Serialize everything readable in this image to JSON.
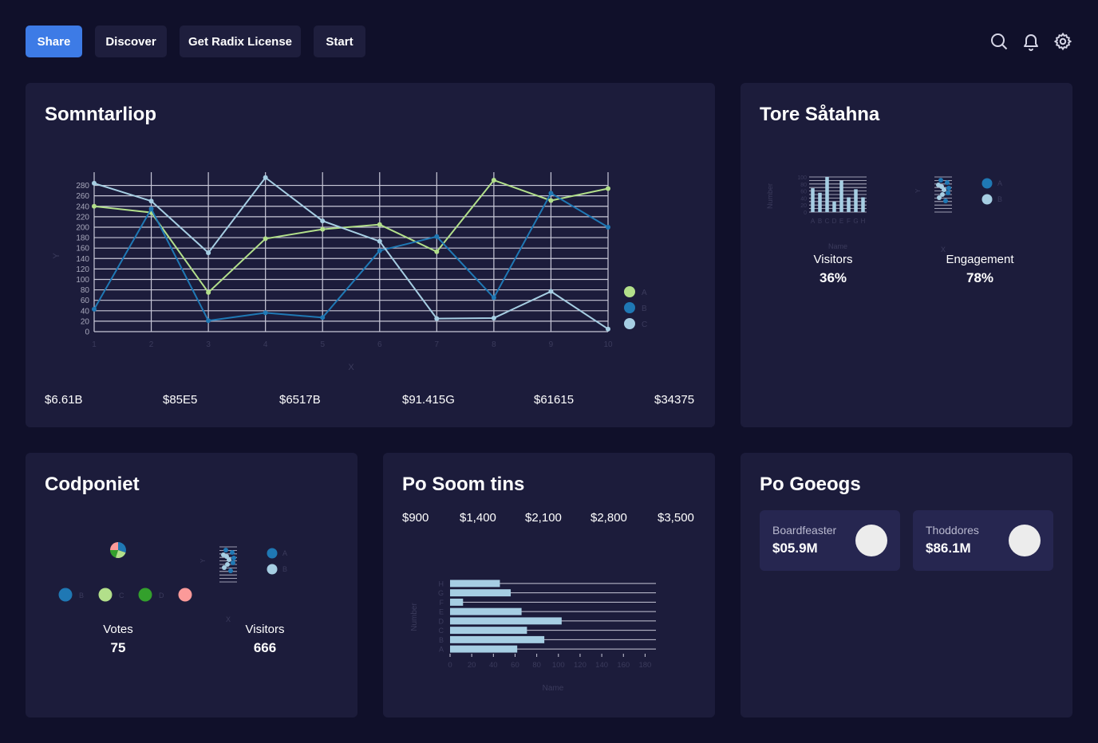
{
  "toolbar": {
    "share": "Share",
    "discover": "Discover",
    "license": "Get Radix License",
    "start": "Start"
  },
  "icons": [
    "search-icon",
    "bell-icon",
    "gear-icon"
  ],
  "colors": {
    "accent": "#3d7be6",
    "seriesA": "#b2df8a",
    "seriesB": "#1f78b4",
    "seriesC": "#a6cee3",
    "pink": "#fb9a99",
    "green": "#33a02c"
  },
  "main_card": {
    "title": "Somntarliop",
    "stats": [
      "$6.61B",
      "$85E5",
      "$6517B",
      "$91.415G",
      "$61615",
      "$34375"
    ]
  },
  "tore_card": {
    "title": "Tore Såtahna",
    "metric1_label": "Visitors",
    "metric1_value": "36%",
    "metric2_label": "Engagement",
    "metric2_value": "78%",
    "mini_bar_ylabel": "Number",
    "mini_bar_xlabel": "Name",
    "mini_scatter_ylabel": "Y",
    "mini_scatter_xlabel": "X"
  },
  "codponiet_card": {
    "title": "Codponiet",
    "metric1_label": "Votes",
    "metric1_value": "75",
    "metric2_label": "Visitors",
    "metric2_value": "666",
    "legend": [
      "B",
      "C",
      "D"
    ],
    "mini_scatter_ylabel": "Y",
    "mini_scatter_xlabel": "X"
  },
  "posoom_card": {
    "title": "Po Soom tins",
    "stats": [
      "$900",
      "$1,400",
      "$2,100",
      "$2,800",
      "$3,500"
    ]
  },
  "pogoeogs_card": {
    "title": "Po Goeogs",
    "items": [
      {
        "label": "Boardfeaster",
        "value": "$05.9M"
      },
      {
        "label": "Thoddores",
        "value": "$86.1M"
      }
    ]
  },
  "chart_data": [
    {
      "type": "line",
      "x": [
        1,
        2,
        3,
        4,
        5,
        6,
        7,
        8,
        9,
        10
      ],
      "series": [
        {
          "name": "A",
          "values": [
            240,
            228,
            75,
            178,
            196,
            205,
            153,
            290,
            251,
            274
          ]
        },
        {
          "name": "B",
          "values": [
            43,
            235,
            21,
            36,
            27,
            155,
            182,
            65,
            265,
            200
          ]
        },
        {
          "name": "C",
          "values": [
            284,
            250,
            151,
            295,
            212,
            173,
            25,
            26,
            77,
            5
          ]
        }
      ],
      "xlabel": "X",
      "ylabel": "Y",
      "ylim": [
        0,
        290
      ],
      "yticks": [
        0,
        20,
        40,
        60,
        80,
        100,
        120,
        140,
        160,
        180,
        200,
        220,
        240,
        260,
        280
      ],
      "grid": true,
      "legend": "right"
    },
    {
      "type": "bar",
      "categories": [
        "A",
        "B",
        "C",
        "D",
        "E",
        "F",
        "G",
        "H"
      ],
      "values": [
        68,
        55,
        100,
        30,
        90,
        42,
        65,
        42
      ],
      "xlabel": "Name",
      "ylabel": "Number",
      "ylim": [
        0,
        100
      ]
    },
    {
      "type": "bar",
      "orientation": "horizontal",
      "categories": [
        "A",
        "B",
        "C",
        "D",
        "E",
        "F",
        "G",
        "H"
      ],
      "values": [
        62,
        87,
        71,
        103,
        66,
        12,
        56,
        46
      ],
      "xlabel": "Name",
      "ylabel": "Number",
      "xlim": [
        0,
        190
      ],
      "xticks": [
        0,
        20,
        40,
        60,
        80,
        100,
        120,
        140,
        160,
        180
      ]
    }
  ]
}
